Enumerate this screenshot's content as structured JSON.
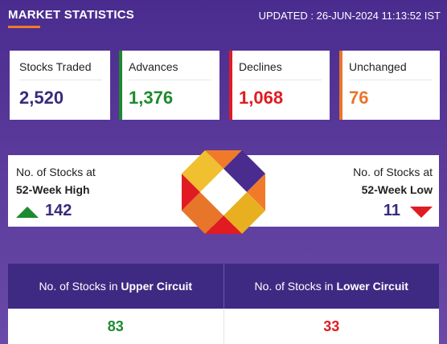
{
  "header": {
    "title": "MARKET STATISTICS",
    "updated": "UPDATED : 26-JUN-2024 11:13:52 IST"
  },
  "cards": [
    {
      "label": "Stocks Traded",
      "value": "2,520",
      "color": "#3a2a7a",
      "accent": "#ffffff"
    },
    {
      "label": "Advances",
      "value": "1,376",
      "color": "#1d8a2f",
      "accent": "#1d8a2f"
    },
    {
      "label": "Declines",
      "value": "1,068",
      "color": "#e01b22",
      "accent": "#e01b22"
    },
    {
      "label": "Unchanged",
      "value": "76",
      "color": "#e8762a",
      "accent": "#e8762a"
    }
  ],
  "week52": {
    "high_label_1": "No. of Stocks at",
    "high_label_2": "52-Week High",
    "high_value": "142",
    "low_label_1": "No. of Stocks at",
    "low_label_2": "52-Week Low",
    "low_value": "11"
  },
  "circuit": {
    "upper_prefix": "No. of Stocks in ",
    "upper_bold": "Upper Circuit",
    "lower_prefix": "No. of Stocks in ",
    "lower_bold": "Lower Circuit",
    "upper_value": "83",
    "lower_value": "33",
    "upper_color": "#1d8a2f",
    "lower_color": "#e01b22"
  },
  "icons": {
    "up": "triangle-up-icon",
    "down": "triangle-down-icon",
    "logo": "octagon-logo"
  }
}
